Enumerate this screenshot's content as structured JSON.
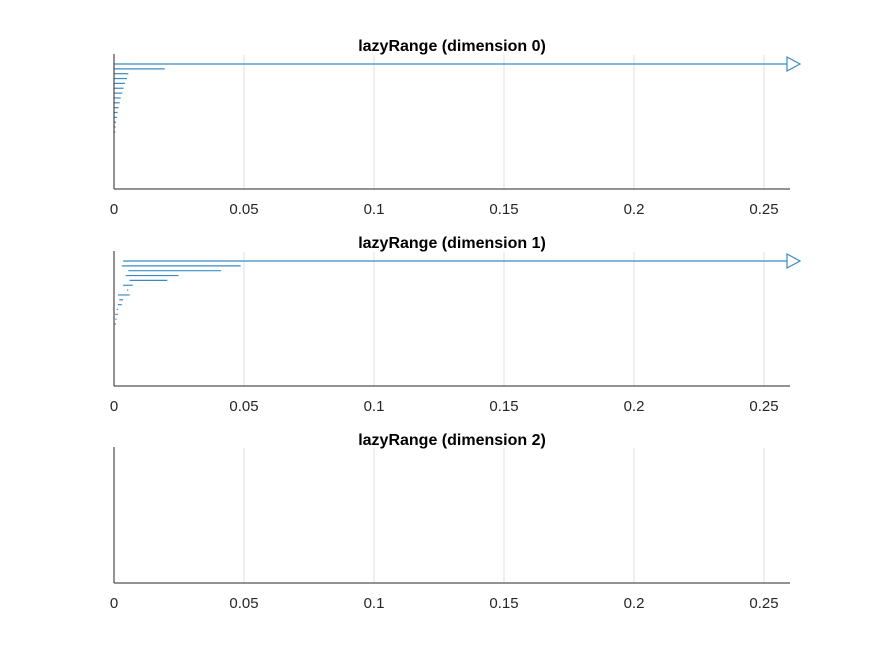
{
  "figure": {
    "background": "#ffffff",
    "series_color": "#3b8bc2"
  },
  "chart_data": [
    {
      "type": "barcode",
      "title": "lazyRange (dimension 0)",
      "xlim": [
        0,
        0.26
      ],
      "xticks": [
        0,
        0.05,
        0.1,
        0.15,
        0.2,
        0.25
      ],
      "xtick_labels": [
        "0",
        "0.05",
        "0.1",
        "0.15",
        "0.2",
        "0.25"
      ],
      "grid": "x",
      "intervals": [
        {
          "birth": 0.0,
          "death": null
        },
        {
          "birth": 0.0,
          "death": 0.0195
        },
        {
          "birth": 0.0,
          "death": 0.0055
        },
        {
          "birth": 0.0,
          "death": 0.005
        },
        {
          "birth": 0.0,
          "death": 0.0042
        },
        {
          "birth": 0.0,
          "death": 0.0037
        },
        {
          "birth": 0.0,
          "death": 0.0032
        },
        {
          "birth": 0.0,
          "death": 0.0026
        },
        {
          "birth": 0.0,
          "death": 0.0022
        },
        {
          "birth": 0.0,
          "death": 0.0018
        },
        {
          "birth": 0.0,
          "death": 0.0014
        },
        {
          "birth": 0.0,
          "death": 0.0011
        },
        {
          "birth": 0.0,
          "death": 0.0008
        },
        {
          "birth": 0.0,
          "death": 0.0006
        },
        {
          "birth": 0.0,
          "death": 0.0005
        }
      ]
    },
    {
      "type": "barcode",
      "title": "lazyRange (dimension 1)",
      "xlim": [
        0,
        0.26
      ],
      "xticks": [
        0,
        0.05,
        0.1,
        0.15,
        0.2,
        0.25
      ],
      "xtick_labels": [
        "0",
        "0.05",
        "0.1",
        "0.15",
        "0.2",
        "0.25"
      ],
      "grid": "x",
      "intervals": [
        {
          "birth": 0.0035,
          "death": null
        },
        {
          "birth": 0.003,
          "death": 0.0487
        },
        {
          "birth": 0.0055,
          "death": 0.0412
        },
        {
          "birth": 0.0045,
          "death": 0.0248
        },
        {
          "birth": 0.006,
          "death": 0.0205
        },
        {
          "birth": 0.0035,
          "death": 0.0072
        },
        {
          "birth": 0.005,
          "death": 0.0055
        },
        {
          "birth": 0.0015,
          "death": 0.006
        },
        {
          "birth": 0.002,
          "death": 0.0035
        },
        {
          "birth": 0.0015,
          "death": 0.003
        },
        {
          "birth": 0.001,
          "death": 0.0015
        },
        {
          "birth": 0.0005,
          "death": 0.0015
        },
        {
          "birth": 0.0005,
          "death": 0.001
        },
        {
          "birth": 0.0003,
          "death": 0.0008
        }
      ]
    },
    {
      "type": "barcode",
      "title": "lazyRange (dimension 2)",
      "xlim": [
        0,
        0.26
      ],
      "xticks": [
        0,
        0.05,
        0.1,
        0.15,
        0.2,
        0.25
      ],
      "xtick_labels": [
        "0",
        "0.05",
        "0.1",
        "0.15",
        "0.2",
        "0.25"
      ],
      "grid": "x",
      "intervals": []
    }
  ]
}
